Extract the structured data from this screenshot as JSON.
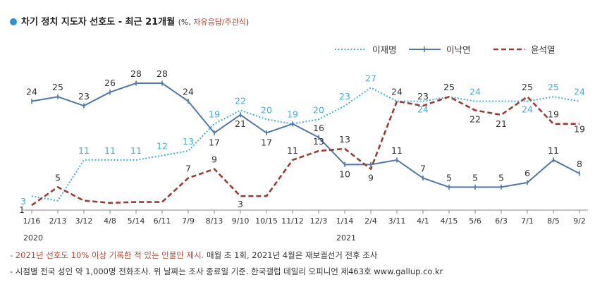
{
  "title": {
    "main": "차기 정치 지도자 선호도 - 최근 21개월",
    "sub_prefix": "(%, ",
    "sub_red": "자유응답/주관식",
    "sub_suffix": ")"
  },
  "notes": [
    {
      "red": "- 2021년 선호도 10% 이상 기록한 적 있는 인물만 제시.",
      "black": " 매월 초 1회, 2021년 4월은 재보궐선거 전후 조사"
    },
    {
      "red": "",
      "black": "- 시점별 전국 성인 약 1,000명 전화조사. 위 날짜는 조사 종료일 기준. 한국갤럽 데일리 오피니언 제463호 www.gallup.co.kr"
    }
  ],
  "chart_data": {
    "type": "line",
    "categories": [
      "1/16",
      "2/13",
      "3/12",
      "4/8",
      "5/14",
      "6/11",
      "7/9",
      "8/13",
      "9/10",
      "10/15",
      "11/12",
      "12/3",
      "1/14",
      "2/4",
      "3/11",
      "4/1",
      "4/15",
      "5/6",
      "6/3",
      "7/1",
      "8/5",
      "9/2"
    ],
    "year_labels": [
      {
        "index": 0,
        "text": "2020"
      },
      {
        "index": 12,
        "text": "2021"
      }
    ],
    "colors": {
      "이재명": "#3bb0e0",
      "이낙연": "#4f78a8",
      "윤석열": "#9c3b34",
      "axis": "#888888"
    },
    "series": [
      {
        "name": "이재명",
        "style": "dotted",
        "values": [
          3,
          2,
          11,
          11,
          11,
          12,
          13,
          19,
          22,
          20,
          19,
          20,
          23,
          27,
          24,
          24,
          25,
          24,
          24,
          24,
          25,
          24
        ]
      },
      {
        "name": "이낙연",
        "style": "solid-markers",
        "values": [
          24,
          25,
          23,
          26,
          28,
          28,
          24,
          17,
          21,
          17,
          19,
          16,
          10,
          10,
          11,
          7,
          5,
          5,
          5,
          6,
          11,
          8
        ]
      },
      {
        "name": "윤석열",
        "style": "dashed",
        "values": [
          1,
          5,
          2,
          1.5,
          1.7,
          1.7,
          7,
          9,
          3,
          3,
          11,
          13,
          13.5,
          9,
          24,
          23,
          25,
          22,
          21,
          25,
          19,
          19
        ]
      }
    ],
    "labels": [
      [
        "3",
        "",
        "11",
        "11",
        "11",
        "12",
        "13",
        "19",
        "22",
        "20",
        "19",
        "20",
        "23",
        "27",
        "",
        "24",
        "25",
        "24",
        "",
        "24",
        "25",
        "24"
      ],
      [
        "24",
        "25",
        "23",
        "26",
        "28",
        "28",
        "24",
        "17",
        "21",
        "17",
        "",
        "16",
        "10",
        "",
        "11",
        "7",
        "5",
        "5",
        "5",
        "6",
        "11",
        "8"
      ],
      [
        "1",
        "5",
        "",
        "",
        "",
        "",
        "7",
        "9",
        "3",
        "",
        "11",
        "13",
        "13",
        "9",
        "24",
        "23",
        "25",
        "22",
        "21",
        "25",
        "19",
        "19"
      ]
    ],
    "ylim": [
      0,
      30
    ],
    "grid": false,
    "legend_position": "top-right"
  }
}
